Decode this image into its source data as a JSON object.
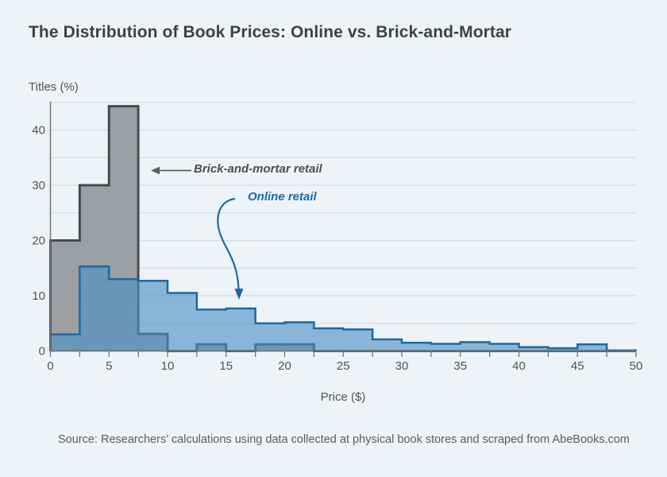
{
  "chart_data": {
    "type": "bar",
    "subtype": "histogram",
    "title": "The Distribution of Book Prices: Online vs. Brick-and-Mortar",
    "xlabel": "Price ($)",
    "ylabel": "Titles (%)",
    "xlim": [
      0,
      50
    ],
    "ylim": [
      0,
      45
    ],
    "grid": "horizontal, every 5",
    "legend_position": "inline annotations with arrows",
    "bin_width": 2.5,
    "bin_edges": [
      0,
      2.5,
      5,
      7.5,
      10,
      12.5,
      15,
      17.5,
      20,
      22.5,
      25,
      27.5,
      30,
      32.5,
      35,
      37.5,
      40,
      42.5,
      45,
      47.5,
      50
    ],
    "x_tick_labels": [
      0,
      5,
      10,
      15,
      20,
      25,
      30,
      35,
      40,
      45,
      50
    ],
    "y_tick_labels": [
      0,
      10,
      20,
      30,
      40
    ],
    "series": [
      {
        "name": "Brick-and-mortar retail",
        "values": [
          20,
          30,
          44.3,
          3.1,
          0,
          1.2,
          0,
          1.2,
          1.2,
          0,
          0,
          0,
          0,
          0,
          0,
          0,
          0,
          0,
          0,
          0
        ]
      },
      {
        "name": "Online retail",
        "values": [
          3,
          15.3,
          13,
          12.7,
          10.5,
          7.5,
          7.7,
          5,
          5.2,
          4.1,
          3.9,
          2.1,
          1.5,
          1.3,
          1.6,
          1.3,
          0.7,
          0.5,
          1.2,
          0.1
        ]
      }
    ]
  },
  "annotations": {
    "brick": {
      "label": "Brick-and-mortar retail"
    },
    "online": {
      "label": "Online retail"
    }
  },
  "source": {
    "text": "Source: Researchers’ calculations using data collected at physical book stores and scraped from AbeBooks.com"
  },
  "colors": {
    "background": "#eef3f7",
    "title_text": "#3d4247",
    "axis_text": "#4e535a",
    "gridline": "#d7dce1",
    "axis_line": "#70757b",
    "gray_fill": "#8e9194",
    "gray_stroke": "#474b50",
    "blue_fill": "#4a90c4",
    "blue_stroke": "#1a6aa5",
    "annotation_blue": "#1a6aa5",
    "annotation_gray": "#4a4e53",
    "arrow_gray": "#5c6166"
  }
}
